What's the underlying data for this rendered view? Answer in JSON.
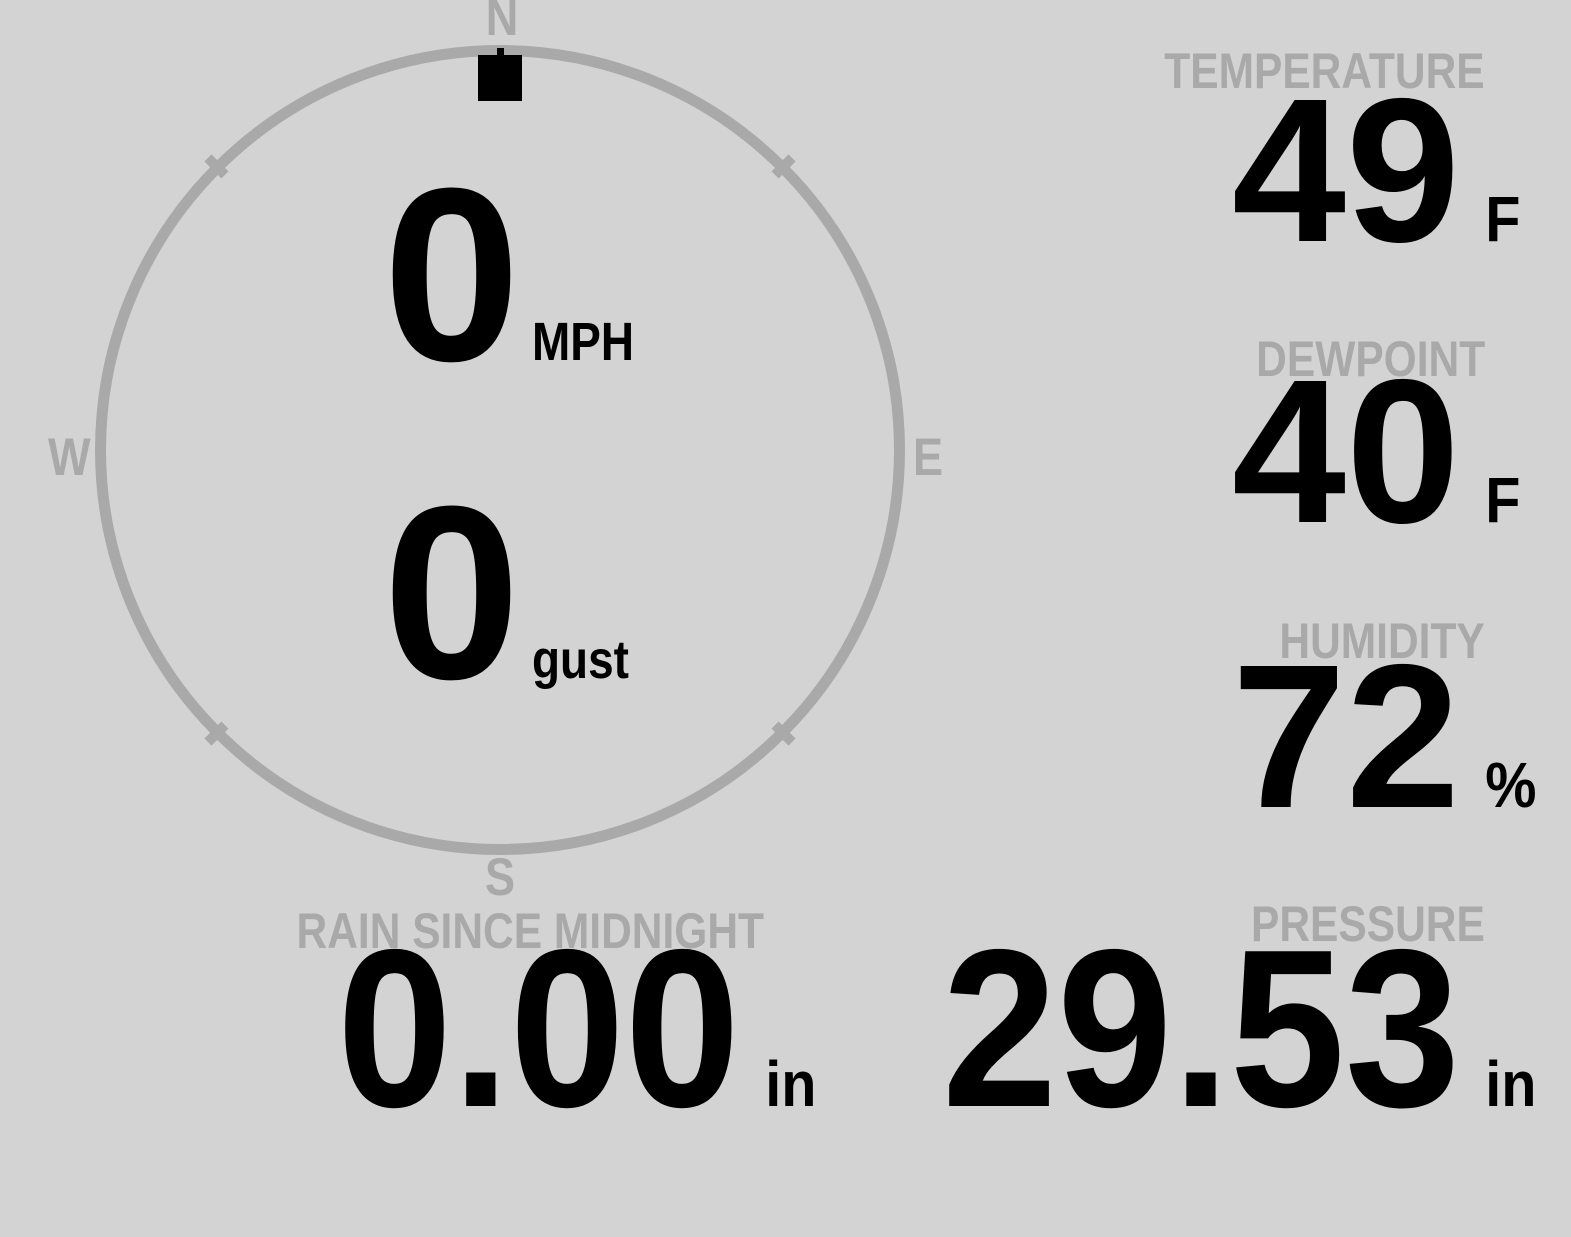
{
  "colors": {
    "background": "#d3d3d3",
    "muted": "#a9a9a9",
    "text": "#000000"
  },
  "compass": {
    "directions": {
      "north": "N",
      "east": "E",
      "south": "S",
      "west": "W"
    },
    "direction_marker_position": "north",
    "wind_speed": {
      "value": "0",
      "unit": "MPH"
    },
    "wind_gust": {
      "value": "0",
      "unit": "gust"
    }
  },
  "metrics": {
    "temperature": {
      "label": "TEMPERATURE",
      "value": "49",
      "unit": "F"
    },
    "dewpoint": {
      "label": "DEWPOINT",
      "value": "40",
      "unit": "F"
    },
    "humidity": {
      "label": "HUMIDITY",
      "value": "72",
      "unit": "%"
    },
    "rain": {
      "label": "RAIN SINCE MIDNIGHT",
      "value": "0.00",
      "unit": "in"
    },
    "pressure": {
      "label": "PRESSURE",
      "value": "29.53",
      "unit": "in"
    }
  }
}
